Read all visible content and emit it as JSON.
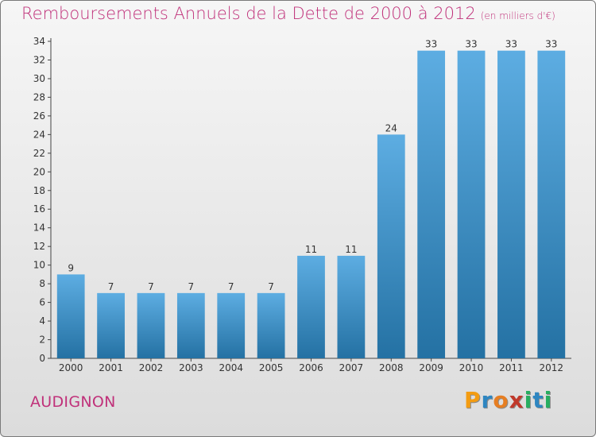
{
  "header": {
    "title": "Remboursements Annuels de la Dette de 2000 à 2012",
    "unit": "(en milliers d'€)"
  },
  "footer": {
    "commune": "AUDIGNON",
    "logo_letters": [
      "P",
      "r",
      "o",
      "x",
      "i",
      "t",
      "i"
    ],
    "logo_colors": [
      "#f39c12",
      "#2e86c1",
      "#e67e22",
      "#c0392b",
      "#27ae60",
      "#2e86c1",
      "#27ae60"
    ]
  },
  "chart_data": {
    "type": "bar",
    "categories": [
      "2000",
      "2001",
      "2002",
      "2003",
      "2004",
      "2005",
      "2006",
      "2007",
      "2008",
      "2009",
      "2010",
      "2011",
      "2012"
    ],
    "values": [
      9,
      7,
      7,
      7,
      7,
      7,
      11,
      11,
      24,
      33,
      33,
      33,
      33
    ],
    "ylim": [
      0,
      34
    ],
    "yticks": [
      0,
      2,
      4,
      6,
      8,
      10,
      12,
      14,
      16,
      18,
      20,
      22,
      24,
      26,
      28,
      30,
      32,
      34
    ],
    "grid": false,
    "bar_color_light": "#5dade2",
    "bar_color_dark": "#2471a3"
  }
}
